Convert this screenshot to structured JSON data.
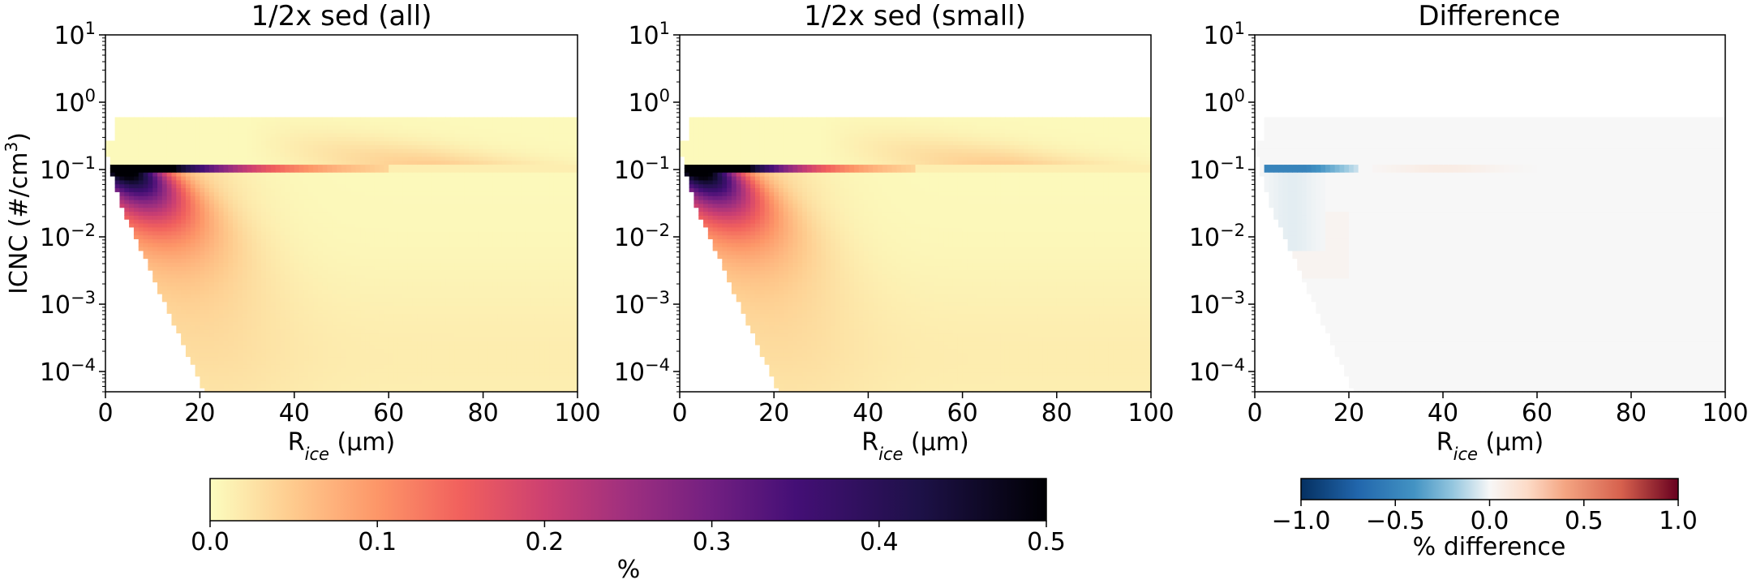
{
  "chart_data": [
    {
      "type": "heatmap",
      "title": "1/2x sed (all)",
      "xlabel": "R_ice (μm)",
      "ylabel": "ICNC (#/cm³)",
      "xlim": [
        0,
        100
      ],
      "ylim": [
        5e-05,
        10
      ],
      "y_scale": "log",
      "xticks": [
        "0",
        "20",
        "40",
        "60",
        "80",
        "100"
      ],
      "yticks": [
        {
          "base": "10",
          "exp": "1"
        },
        {
          "base": "10",
          "exp": "0"
        },
        {
          "base": "10",
          "exp": "−1"
        },
        {
          "base": "10",
          "exp": "−2"
        },
        {
          "base": "10",
          "exp": "−3"
        },
        {
          "base": "10",
          "exp": "−4"
        }
      ],
      "colorbar": "shared-magma",
      "features": {
        "peak_value": 0.5,
        "peak_R_um": [
          3,
          15
        ],
        "peak_ICNC": 0.1,
        "streak_end_R_um": 60,
        "top_ICNC": 0.5
      },
      "grid": false
    },
    {
      "type": "heatmap",
      "title": "1/2x sed (small)",
      "xlabel": "R_ice (μm)",
      "xlim": [
        0,
        100
      ],
      "ylim": [
        5e-05,
        10
      ],
      "y_scale": "log",
      "xticks": [
        "0",
        "20",
        "40",
        "60",
        "80",
        "100"
      ],
      "yticks": [
        {
          "base": "10",
          "exp": "1"
        },
        {
          "base": "10",
          "exp": "0"
        },
        {
          "base": "10",
          "exp": "−1"
        },
        {
          "base": "10",
          "exp": "−2"
        },
        {
          "base": "10",
          "exp": "−3"
        },
        {
          "base": "10",
          "exp": "−4"
        }
      ],
      "colorbar": "shared-magma",
      "features": {
        "peak_value": 0.5,
        "peak_R_um": [
          3,
          15
        ],
        "peak_ICNC": 0.1,
        "streak_end_R_um": 50,
        "top_ICNC": 0.5
      },
      "grid": false
    },
    {
      "type": "heatmap",
      "title": "Difference",
      "xlabel": "R_ice (μm)",
      "xlim": [
        0,
        100
      ],
      "ylim": [
        5e-05,
        10
      ],
      "y_scale": "log",
      "xticks": [
        "0",
        "20",
        "40",
        "60",
        "80",
        "100"
      ],
      "yticks": [
        {
          "base": "10",
          "exp": "1"
        },
        {
          "base": "10",
          "exp": "0"
        },
        {
          "base": "10",
          "exp": "−1"
        },
        {
          "base": "10",
          "exp": "−2"
        },
        {
          "base": "10",
          "exp": "−3"
        },
        {
          "base": "10",
          "exp": "−4"
        }
      ],
      "colorbar": "difference-rdbu",
      "features": {
        "min_value": -0.5,
        "min_R_um": [
          2,
          15
        ],
        "min_ICNC": 0.1,
        "pos_streak_R_um": [
          25,
          60
        ],
        "background": 0.0
      },
      "grid": false
    }
  ],
  "colorbars": {
    "shared": {
      "colormap": "magma_r",
      "min": 0.0,
      "max": 0.5,
      "ticks": [
        "0.0",
        "0.1",
        "0.2",
        "0.3",
        "0.4",
        "0.5"
      ],
      "label": "%"
    },
    "difference": {
      "colormap": "RdBu_r",
      "min": -1.0,
      "max": 1.0,
      "ticks": [
        "−1.0",
        "−0.5",
        "0.0",
        "0.5",
        "1.0"
      ],
      "label": "% difference"
    }
  }
}
